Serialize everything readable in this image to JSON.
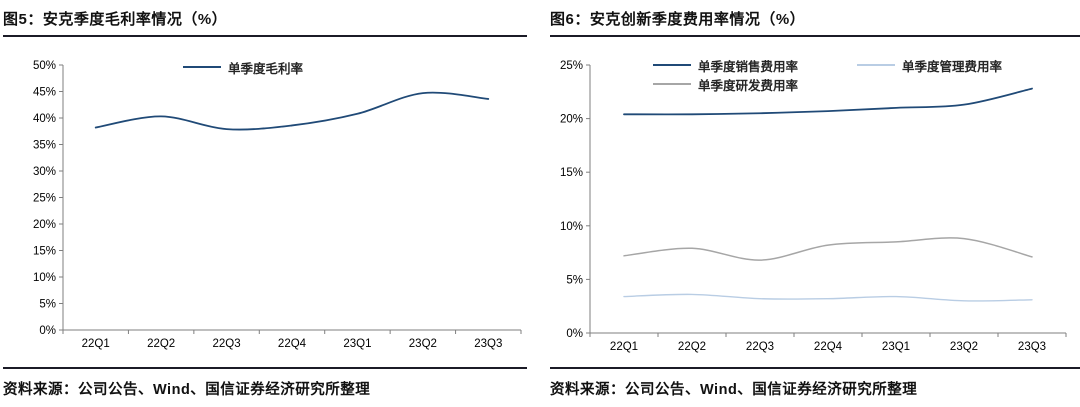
{
  "figures": [
    {
      "title": "图5：安克季度毛利率情况（%）",
      "source": "资料来源：公司公告、Wind、国信证券经济研究所整理"
    },
    {
      "title": "图6：安克创新季度费用率情况（%）",
      "source": "资料来源：公司公告、Wind、国信证券经济研究所整理"
    }
  ],
  "chart_data": [
    {
      "type": "line",
      "title": "安克季度毛利率情况（%）",
      "categories": [
        "22Q1",
        "22Q2",
        "22Q3",
        "22Q4",
        "23Q1",
        "23Q2",
        "23Q3"
      ],
      "series": [
        {
          "name": "单季度毛利率",
          "color": "#204a77",
          "values": [
            38.2,
            40.3,
            37.9,
            38.6,
            40.8,
            44.7,
            43.6
          ]
        }
      ],
      "xlabel": "",
      "ylabel": "",
      "ylim": [
        0,
        50
      ],
      "ytick_step": 5,
      "yticks": [
        "0%",
        "5%",
        "10%",
        "15%",
        "20%",
        "25%",
        "30%",
        "35%",
        "40%",
        "45%",
        "50%"
      ],
      "grid": false,
      "legend_position": "top",
      "legend_columns": [
        [
          0
        ]
      ]
    },
    {
      "type": "line",
      "title": "安克创新季度费用率情况（%）",
      "categories": [
        "22Q1",
        "22Q2",
        "22Q3",
        "22Q4",
        "23Q1",
        "23Q2",
        "23Q3"
      ],
      "series": [
        {
          "name": "单季度销售费用率",
          "color": "#204a77",
          "values": [
            20.4,
            20.4,
            20.5,
            20.7,
            21.0,
            21.3,
            22.8
          ]
        },
        {
          "name": "单季度研发费用率",
          "color": "#a6a6a6",
          "values": [
            7.2,
            7.9,
            6.8,
            8.2,
            8.5,
            8.8,
            7.1
          ]
        },
        {
          "name": "单季度管理费用率",
          "color": "#b9cde4",
          "values": [
            3.4,
            3.6,
            3.2,
            3.2,
            3.4,
            3.0,
            3.1
          ]
        }
      ],
      "xlabel": "",
      "ylabel": "",
      "ylim": [
        0,
        25
      ],
      "ytick_step": 5,
      "yticks": [
        "0%",
        "5%",
        "10%",
        "15%",
        "20%",
        "25%"
      ],
      "grid": false,
      "legend_position": "top",
      "legend_columns": [
        [
          0,
          1
        ],
        [
          2
        ]
      ]
    }
  ],
  "colors": {
    "axis": "#7f7f7f",
    "rule": "#1b1b26",
    "text": "#111111"
  }
}
